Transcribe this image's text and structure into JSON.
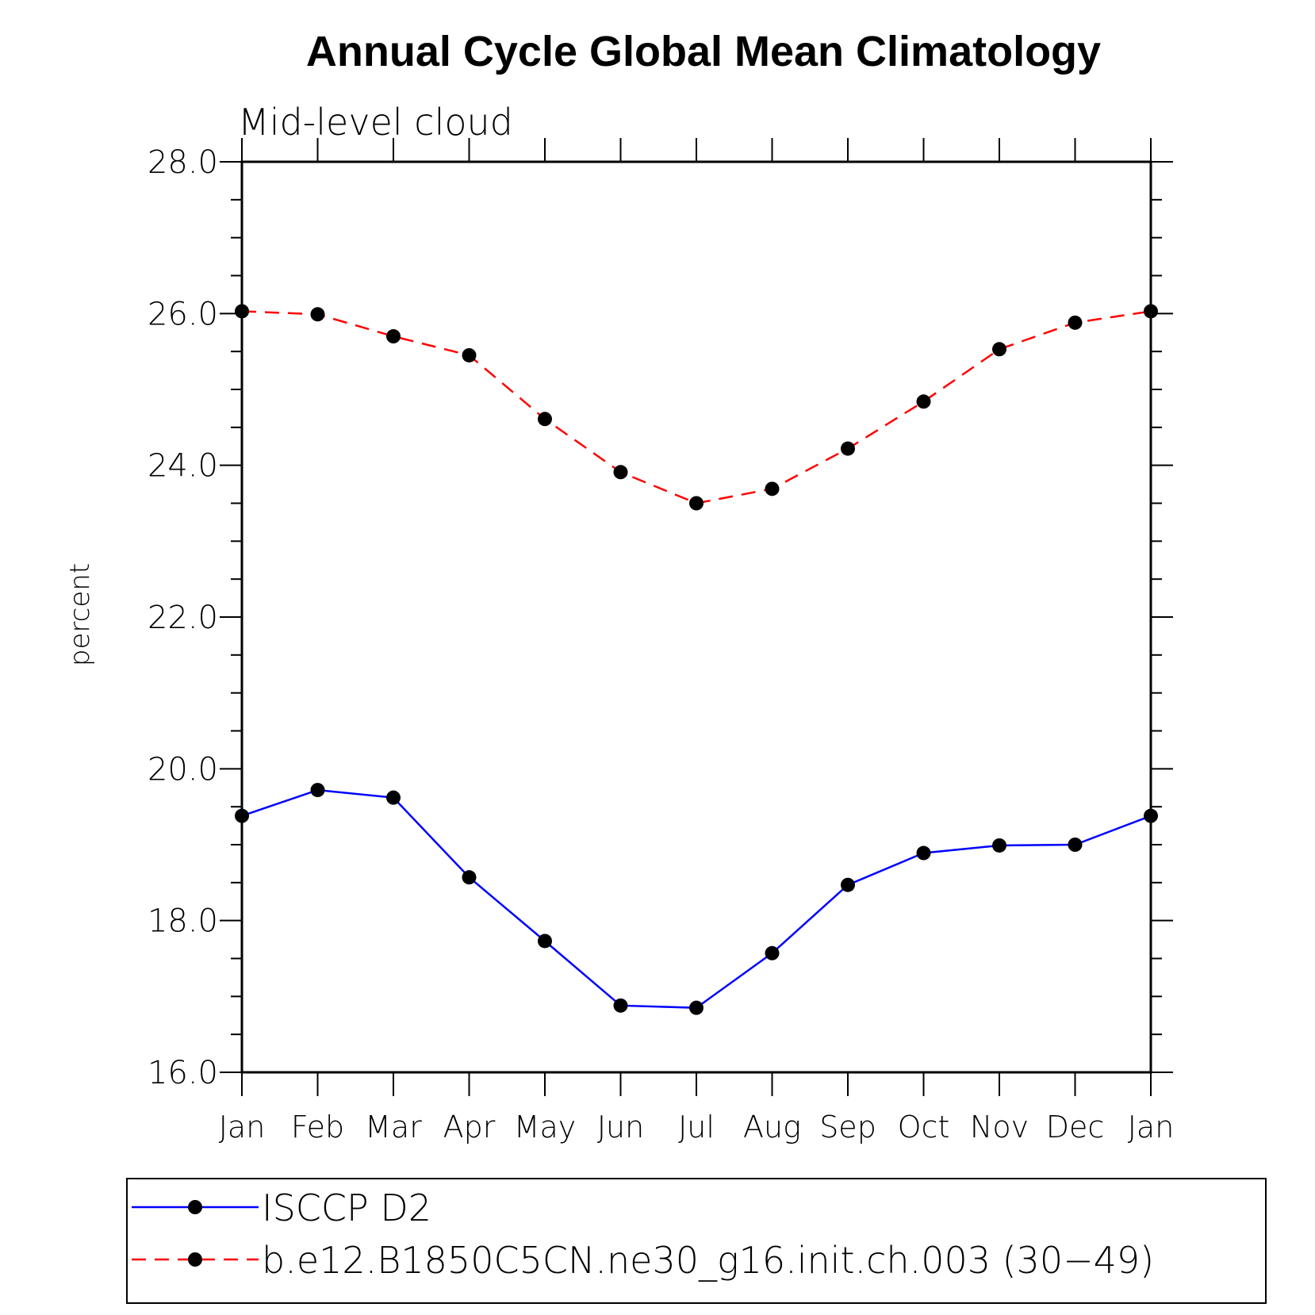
{
  "chart_data": {
    "type": "line",
    "title": "Annual Cycle Global Mean Climatology",
    "subtitle": "Mid-level cloud",
    "xlabel": "",
    "ylabel": "percent",
    "ylim": [
      16.0,
      28.0
    ],
    "yticks": [
      16.0,
      18.0,
      20.0,
      22.0,
      24.0,
      26.0,
      28.0
    ],
    "ytick_labels": [
      "16.0",
      "18.0",
      "20.0",
      "22.0",
      "24.0",
      "26.0",
      "28.0"
    ],
    "categories": [
      "Jan",
      "Feb",
      "Mar",
      "Apr",
      "May",
      "Jun",
      "Jul",
      "Aug",
      "Sep",
      "Oct",
      "Nov",
      "Dec",
      "Jan"
    ],
    "grid": false,
    "legend_position": "bottom",
    "series": [
      {
        "name": "ISCCP D2",
        "color": "#0000ff",
        "dash": "solid",
        "marker": "filled-circle",
        "values": [
          19.38,
          19.72,
          19.62,
          18.57,
          17.73,
          16.88,
          16.85,
          17.57,
          18.47,
          18.89,
          18.99,
          19.0,
          19.38
        ]
      },
      {
        "name": "b.e12.B1850C5CN.ne30_g16.init.ch.003 (30−49)",
        "color": "#ff0000",
        "dash": "dashed",
        "marker": "filled-circle",
        "values": [
          26.03,
          25.99,
          25.7,
          25.45,
          24.61,
          23.91,
          23.5,
          23.69,
          24.22,
          24.84,
          25.53,
          25.88,
          26.03
        ]
      }
    ]
  }
}
